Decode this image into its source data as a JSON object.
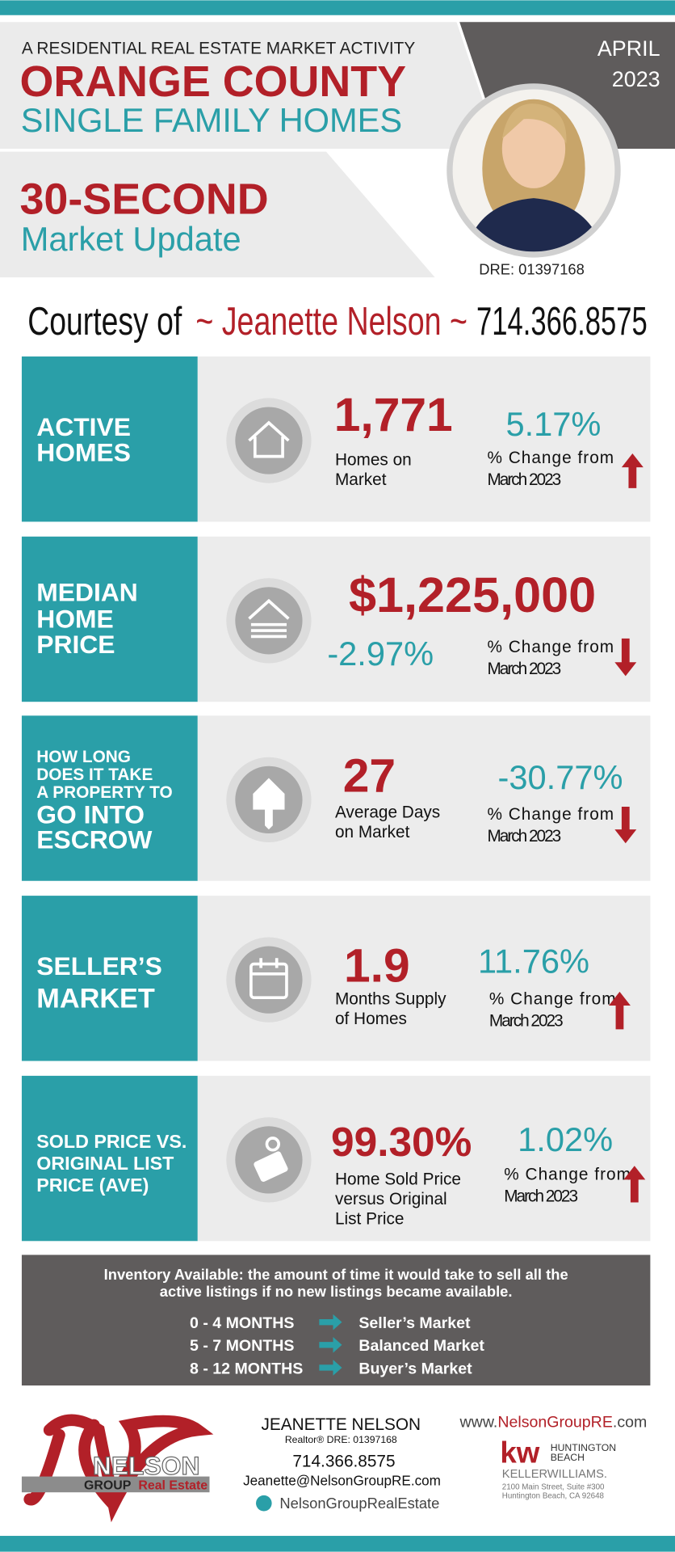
{
  "header": {
    "kicker": "A RESIDENTIAL REAL ESTATE MARKET ACTIVITY",
    "title": "ORANGE COUNTY",
    "subtitle": "SINGLE FAMILY HOMES",
    "month": "APRIL",
    "year": "2023",
    "update_line1": "30-SECOND",
    "update_line2": "Market Update",
    "dre": "DRE: 01397168"
  },
  "courtesy": {
    "prefix": "Courtesy of",
    "name": "~ Jeanette Nelson ~",
    "phone": "714.366.8575"
  },
  "stats": [
    {
      "label": [
        "ACTIVE",
        "HOMES"
      ],
      "value": "1,771",
      "caption": [
        "Homes on",
        "Market"
      ],
      "change": "5.17%",
      "change_text": [
        "% Change from",
        "March 2023"
      ],
      "direction": "up"
    },
    {
      "label": [
        "MEDIAN",
        "HOME",
        "PRICE"
      ],
      "value": "$1,225,000",
      "caption": [],
      "change": "-2.97%",
      "change_text": [
        "% Change from",
        "March 2023"
      ],
      "direction": "down"
    },
    {
      "label": [
        "HOW LONG",
        "DOES IT TAKE",
        "A PROPERTY TO",
        "GO INTO",
        "ESCROW"
      ],
      "value": "27",
      "caption": [
        "Average Days",
        "on Market"
      ],
      "change": "-30.77%",
      "change_text": [
        "% Change from",
        "March 2023"
      ],
      "direction": "down"
    },
    {
      "label": [
        "SELLER’S",
        "MARKET"
      ],
      "value": "1.9",
      "caption": [
        "Months Supply",
        "of Homes"
      ],
      "change": "11.76%",
      "change_text": [
        "% Change from",
        "March 2023"
      ],
      "direction": "up"
    },
    {
      "label": [
        "SOLD PRICE VS.",
        "ORIGINAL LIST",
        "PRICE (AVE)"
      ],
      "value": "99.30%",
      "caption": [
        "Home Sold Price",
        "versus Original",
        "List Price"
      ],
      "change": "1.02%",
      "change_text": [
        "% Change from",
        "March 2023"
      ],
      "direction": "up"
    }
  ],
  "inventory": {
    "note": [
      "Inventory Available:  the amount of time it would take to sell all the",
      "active listings if no new listings became available."
    ],
    "rows": [
      [
        "0 - 4 MONTHS",
        "Seller’s Market"
      ],
      [
        "5 - 7 MONTHS",
        "Balanced Market"
      ],
      [
        "8 - 12 MONTHS",
        "Buyer’s Market"
      ]
    ]
  },
  "footer": {
    "logo_name": "NELSON",
    "logo_group": "GROUP",
    "logo_re": "Real Estate",
    "agent": "JEANETTE NELSON",
    "role": "Realtor®  DRE: 01397168",
    "phone": "714.366.8575",
    "email": "Jeanette@NelsonGroupRE.com",
    "social": "NelsonGroupRealEstate",
    "website": [
      "www.",
      "NelsonGroupRE",
      ".com"
    ],
    "kw": "kw",
    "kw_office": [
      "HUNTINGTON",
      "BEACH"
    ],
    "kw_brand": "KELLERWILLIAMS.",
    "address": [
      "2100 Main Street, Suite #300",
      "Huntington Beach, CA 92648"
    ]
  }
}
